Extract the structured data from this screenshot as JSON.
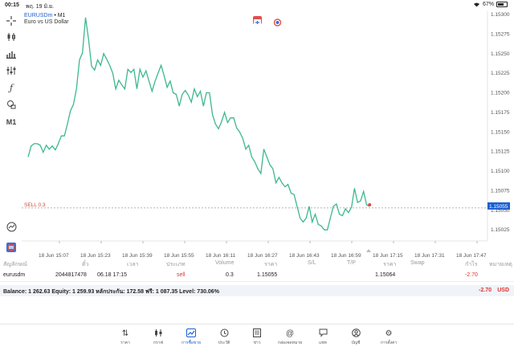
{
  "status": {
    "time": "00:15",
    "date": "พฤ. 19 มิ.ย.",
    "battery": "67%",
    "battery_level": 0.67
  },
  "chart": {
    "symbol": "EURUSDm",
    "timeframe_suffix": " • M1",
    "description": "Euro vs US Dollar",
    "timeframe": "M1",
    "order_line_label": "SELL 0.3",
    "bid_price_label": "1.15055"
  },
  "colors": {
    "line": "#3cb88f",
    "accent": "#1a5fd0",
    "loss": "#d33333",
    "order_line": "#c94a3a"
  },
  "toolbar_icons": [
    "crosshair-icon",
    "candlesticks-icon",
    "bar-chart-icon",
    "indicators-icon",
    "function-icon",
    "objects-icon",
    "timeframe-label",
    "quick-trade-icon",
    "trade-toggle-icon"
  ],
  "chart_data": {
    "type": "line",
    "series": [
      {
        "values": [
          1.15118,
          1.15132,
          1.15135,
          1.15135,
          1.15133,
          1.15124,
          1.15133,
          1.15128,
          1.15132,
          1.15127,
          1.15135,
          1.15145,
          1.15145,
          1.1516,
          1.15177,
          1.15185,
          1.15205,
          1.15242,
          1.15251,
          1.15296,
          1.15268,
          1.15234,
          1.15229,
          1.15242,
          1.15235,
          1.1525,
          1.15243,
          1.15235,
          1.15225,
          1.15205,
          1.15216,
          1.1521,
          1.15205,
          1.1523,
          1.15226,
          1.1523,
          1.15205,
          1.1523,
          1.1522,
          1.15228,
          1.15215,
          1.15202,
          1.15215,
          1.15225,
          1.15235,
          1.15222,
          1.15207,
          1.15215,
          1.152,
          1.15198,
          1.15183,
          1.15198,
          1.15203,
          1.15197,
          1.15188,
          1.15205,
          1.15195,
          1.15202,
          1.15183,
          1.152,
          1.152,
          1.15172,
          1.1516,
          1.15154,
          1.15163,
          1.15175,
          1.15162,
          1.15168,
          1.15168,
          1.15155,
          1.1515,
          1.15142,
          1.15128,
          1.15133,
          1.15118,
          1.15112,
          1.15103,
          1.15097,
          1.15128,
          1.15118,
          1.15108,
          1.15103,
          1.15085,
          1.15092,
          1.15085,
          1.1508,
          1.15083,
          1.15072,
          1.1507,
          1.15055,
          1.1504,
          1.15035,
          1.1504,
          1.15055,
          1.15035,
          1.15045,
          1.15032,
          1.1503,
          1.15025,
          1.15025,
          1.1504,
          1.15055,
          1.15058,
          1.15045,
          1.15043,
          1.15052,
          1.15047,
          1.15054,
          1.15078,
          1.1506,
          1.15062,
          1.15074,
          1.15057,
          1.15055
        ]
      }
    ],
    "x_labels": [
      "18 Jun 15:07",
      "18 Jun 15:23",
      "18 Jun 15:39",
      "18 Jun 15:55",
      "18 Jun 16:11",
      "18 Jun 16:27",
      "18 Jun 16:43",
      "18 Jun 16:59",
      "18 Jun 17:15",
      "18 Jun 17:31",
      "18 Jun 17:47"
    ],
    "y_ticks": [
      "1.15300",
      "1.15275",
      "1.15250",
      "1.15225",
      "1.15200",
      "1.15175",
      "1.15150",
      "1.15125",
      "1.15100",
      "1.15075",
      "1.15050",
      "1.15025"
    ],
    "ylim": [
      1.15017,
      1.153
    ],
    "order_line": 1.15053,
    "last_price": 1.15055,
    "grid": false
  },
  "positions": {
    "headers": [
      "สัญลักษณ์",
      "ตั๋ว",
      "เวลา",
      "ประเภท",
      "Volume",
      "ราคา",
      "S/L",
      "T/P",
      "ราคา",
      "Swap",
      "กำไร",
      "หมายเหตุ"
    ],
    "rows": [
      {
        "symbol": "eurusdm",
        "ticket": "2044817478",
        "time": "06.18 17:15",
        "type": "sell",
        "volume": "0.3",
        "open_price": "1.15055",
        "current_price": "1.15064",
        "profit": "-2.70"
      }
    ]
  },
  "account": {
    "summary": "Balance: 1 262.63 Equity: 1 259.93 หลักประกัน: 172.58 ฟรี: 1 087.35 Level: 730.06%",
    "profit": "-2.70",
    "currency": "USD"
  },
  "tabs": [
    {
      "name": "tab-quotes",
      "label": "ราคา",
      "icon": "quotes-icon"
    },
    {
      "name": "tab-charts",
      "label": "กราฟ",
      "icon": "charts-icon"
    },
    {
      "name": "tab-trade",
      "label": "การซื้อขาย",
      "icon": "trade-icon"
    },
    {
      "name": "tab-history",
      "label": "ประวัติ",
      "icon": "history-icon"
    },
    {
      "name": "tab-news",
      "label": "ข่าว",
      "icon": "news-icon"
    },
    {
      "name": "tab-mailbox",
      "label": "กล่องจดหมาย",
      "icon": "mailbox-icon"
    },
    {
      "name": "tab-chat",
      "label": "แชท",
      "icon": "chat-icon"
    },
    {
      "name": "tab-accounts",
      "label": "บัญชี",
      "icon": "accounts-icon"
    },
    {
      "name": "tab-settings",
      "label": "การตั้งค่า",
      "icon": "settings-icon"
    }
  ]
}
